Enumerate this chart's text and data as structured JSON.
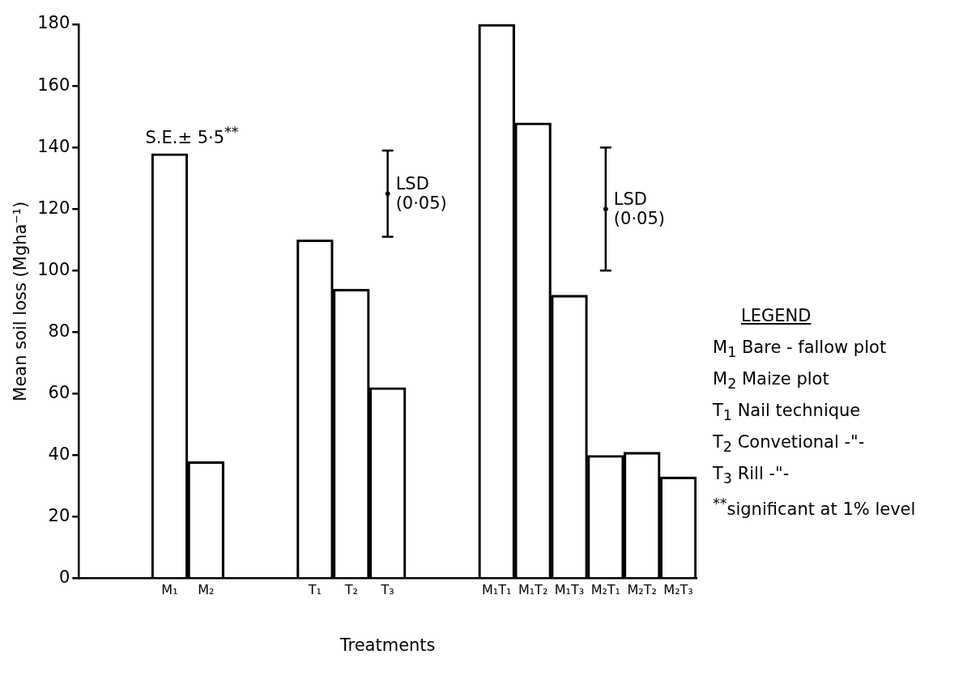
{
  "chart_data": {
    "type": "bar",
    "xlabel": "Treatments",
    "ylabel": "Mean soil loss (Mgha⁻¹)",
    "categories": [
      null,
      null,
      "M₁",
      "M₂",
      null,
      null,
      "T₁",
      "T₂",
      "T₃",
      null,
      null,
      "M₁T₁",
      "M₁T₂",
      "M₁T₃",
      "M₂T₁",
      "M₂T₂",
      "M₂T₃"
    ],
    "series": [
      {
        "color": "#000000",
        "values": [
          null,
          null,
          138,
          38,
          null,
          null,
          110,
          94,
          62,
          null,
          null,
          180,
          148,
          92,
          40,
          41,
          33
        ]
      },
      {
        "type": "scatter",
        "color": "#000000",
        "marker": "circle",
        "x": [
          "T₃",
          "M₂T₁"
        ],
        "values": [
          125,
          120
        ],
        "errors": [
          [
            111,
            139
          ],
          [
            100,
            140
          ]
        ]
      }
    ],
    "ylim": [
      0,
      180
    ],
    "yticks": [
      0,
      20,
      40,
      60,
      80,
      100,
      120,
      140,
      160,
      180
    ],
    "grid": false,
    "legend": false,
    "annotations": [
      "S.E.± 5·5$^{**}$",
      {
        "text": "LSD\n(0·05)",
        "x": "T₃",
        "y": 125
      },
      {
        "text": "LSD\n(0·05)",
        "x": "M₂T₁",
        "y": 120
      },
      "LEGEND",
      "M$_{1}$ Bare - fallow plot",
      "M$_{2}$ Maize plot",
      "T$_{1}$ Nail technique",
      "T$_{2}$ Convetional -\"-",
      "T$_{3}$ Rill -\"-",
      "$^{**}$significant at 1% level"
    ]
  }
}
